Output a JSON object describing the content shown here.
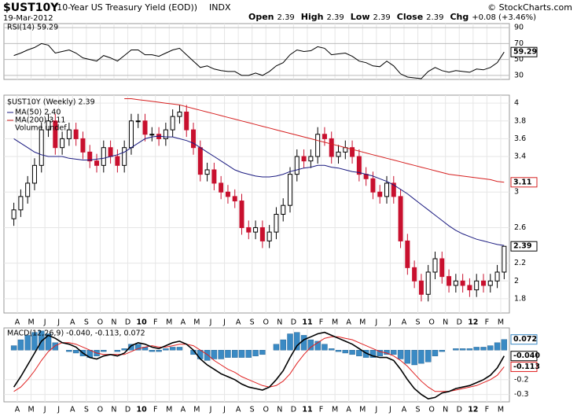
{
  "chart_data": {
    "type": "candlestick",
    "title": "$UST10Y",
    "subtitle": "(10-Year US Treasury Yield (EOD))",
    "exchange": "INDX",
    "date": "19-Mar-2012",
    "quote": [
      [
        "Open",
        "2.39"
      ],
      [
        "High",
        "2.39"
      ],
      [
        "Low",
        "2.39"
      ],
      [
        "Close",
        "2.39"
      ],
      [
        "Chg",
        "+0.08 (+3.46%)"
      ]
    ],
    "copyright": "© StockCharts.com",
    "legend": {
      "price": "$UST10Y (Weekly) 2.39",
      "ma50": "MA(50) 2.40",
      "ma200": "MA(200) 3.11",
      "volume": "Volume undef"
    },
    "tags": {
      "price": "2.39",
      "ma200": "3.11"
    },
    "months": [
      "A",
      "M",
      "J",
      "J",
      "A",
      "S",
      "O",
      "N",
      "D",
      "10",
      "F",
      "M",
      "A",
      "M",
      "J",
      "J",
      "A",
      "S",
      "O",
      "N",
      "D",
      "11",
      "F",
      "M",
      "A",
      "M",
      "J",
      "J",
      "A",
      "S",
      "O",
      "N",
      "D",
      "12",
      "F",
      "M"
    ],
    "ylim": [
      1.64,
      4.09
    ],
    "yticks": [
      1.8,
      2.0,
      2.2,
      2.6,
      3.0,
      3.4,
      3.6,
      3.8,
      4.0
    ],
    "grid": true,
    "up_color": "#ffffff",
    "down_color": "#c8102e",
    "open": [
      2.7,
      2.8,
      2.95,
      3.1,
      3.3,
      3.7,
      3.8,
      3.5,
      3.6,
      3.7,
      3.6,
      3.45,
      3.35,
      3.3,
      3.5,
      3.4,
      3.3,
      3.5,
      3.8,
      3.8,
      3.65,
      3.65,
      3.6,
      3.7,
      3.85,
      3.9,
      3.7,
      3.5,
      3.2,
      3.25,
      3.1,
      3.0,
      2.95,
      2.9,
      2.6,
      2.55,
      2.6,
      2.45,
      2.55,
      2.75,
      2.85,
      3.2,
      3.4,
      3.35,
      3.4,
      3.65,
      3.6,
      3.4,
      3.45,
      3.5,
      3.4,
      3.2,
      3.15,
      3.0,
      2.95,
      3.1,
      2.95,
      2.45,
      2.15,
      2.0,
      1.85,
      2.1,
      2.25,
      2.05,
      1.95,
      2.0,
      1.95,
      1.9,
      2.0,
      1.95,
      2.0,
      2.1
    ],
    "high": [
      2.88,
      3.03,
      3.18,
      3.38,
      3.78,
      3.88,
      3.88,
      3.68,
      3.78,
      3.78,
      3.68,
      3.53,
      3.43,
      3.58,
      3.58,
      3.48,
      3.58,
      3.88,
      3.88,
      3.88,
      3.73,
      3.73,
      3.78,
      3.93,
      3.98,
      3.98,
      3.78,
      3.58,
      3.33,
      3.33,
      3.18,
      3.08,
      3.03,
      2.98,
      2.68,
      2.68,
      2.68,
      2.63,
      2.83,
      2.93,
      3.28,
      3.48,
      3.48,
      3.48,
      3.73,
      3.73,
      3.68,
      3.53,
      3.58,
      3.58,
      3.48,
      3.28,
      3.23,
      3.08,
      3.18,
      3.18,
      3.03,
      2.53,
      2.23,
      2.08,
      2.18,
      2.33,
      2.33,
      2.13,
      2.08,
      2.08,
      2.03,
      2.08,
      2.08,
      2.08,
      2.18,
      2.39
    ],
    "low": [
      2.62,
      2.72,
      2.87,
      3.02,
      3.22,
      3.62,
      3.42,
      3.42,
      3.52,
      3.52,
      3.37,
      3.27,
      3.22,
      3.22,
      3.32,
      3.22,
      3.22,
      3.42,
      3.72,
      3.57,
      3.57,
      3.52,
      3.52,
      3.62,
      3.77,
      3.62,
      3.42,
      3.12,
      3.12,
      3.02,
      2.92,
      2.87,
      2.82,
      2.52,
      2.47,
      2.47,
      2.37,
      2.37,
      2.47,
      2.67,
      2.77,
      3.12,
      3.27,
      3.27,
      3.32,
      3.52,
      3.32,
      3.32,
      3.37,
      3.32,
      3.12,
      3.07,
      2.92,
      2.87,
      2.87,
      2.87,
      2.37,
      2.07,
      1.92,
      1.77,
      1.77,
      2.02,
      1.97,
      1.87,
      1.87,
      1.87,
      1.82,
      1.82,
      1.87,
      1.87,
      1.92,
      2.02
    ],
    "close": [
      2.8,
      2.95,
      3.1,
      3.3,
      3.7,
      3.8,
      3.5,
      3.6,
      3.7,
      3.6,
      3.45,
      3.35,
      3.3,
      3.5,
      3.4,
      3.3,
      3.5,
      3.8,
      3.8,
      3.65,
      3.65,
      3.6,
      3.7,
      3.85,
      3.9,
      3.7,
      3.5,
      3.2,
      3.25,
      3.1,
      3.0,
      2.95,
      2.9,
      2.6,
      2.55,
      2.6,
      2.45,
      2.55,
      2.75,
      2.85,
      3.2,
      3.4,
      3.35,
      3.4,
      3.65,
      3.6,
      3.4,
      3.45,
      3.5,
      3.4,
      3.2,
      3.15,
      3.0,
      2.95,
      3.1,
      2.95,
      2.45,
      2.15,
      2.0,
      1.85,
      2.1,
      2.25,
      2.05,
      1.95,
      2.0,
      1.95,
      1.9,
      2.0,
      1.95,
      2.0,
      2.1,
      2.39
    ],
    "series": [
      {
        "name": "MA(50)",
        "color": "#1a1a80",
        "values": [
          3.6,
          3.55,
          3.5,
          3.45,
          3.42,
          3.4,
          3.4,
          3.4,
          3.38,
          3.37,
          3.36,
          3.36,
          3.37,
          3.38,
          3.4,
          3.42,
          3.45,
          3.5,
          3.55,
          3.6,
          3.62,
          3.63,
          3.62,
          3.62,
          3.6,
          3.58,
          3.55,
          3.5,
          3.45,
          3.4,
          3.35,
          3.3,
          3.25,
          3.22,
          3.2,
          3.18,
          3.17,
          3.17,
          3.18,
          3.2,
          3.23,
          3.25,
          3.27,
          3.28,
          3.3,
          3.3,
          3.28,
          3.27,
          3.25,
          3.23,
          3.22,
          3.2,
          3.18,
          3.15,
          3.12,
          3.08,
          3.03,
          2.98,
          2.92,
          2.86,
          2.8,
          2.74,
          2.68,
          2.62,
          2.57,
          2.53,
          2.5,
          2.47,
          2.45,
          2.43,
          2.41,
          2.4
        ]
      },
      {
        "name": "MA(200)",
        "color": "#d62020",
        "values": [
          null,
          null,
          null,
          null,
          null,
          null,
          null,
          null,
          null,
          null,
          null,
          null,
          null,
          null,
          null,
          null,
          4.05,
          4.05,
          4.04,
          4.03,
          4.02,
          4.01,
          4.0,
          3.99,
          3.98,
          3.96,
          3.94,
          3.92,
          3.9,
          3.88,
          3.86,
          3.84,
          3.82,
          3.8,
          3.78,
          3.76,
          3.74,
          3.72,
          3.7,
          3.68,
          3.66,
          3.64,
          3.62,
          3.6,
          3.58,
          3.56,
          3.54,
          3.52,
          3.5,
          3.48,
          3.46,
          3.44,
          3.42,
          3.4,
          3.38,
          3.36,
          3.34,
          3.32,
          3.3,
          3.28,
          3.26,
          3.24,
          3.22,
          3.2,
          3.19,
          3.18,
          3.17,
          3.16,
          3.15,
          3.14,
          3.12,
          3.11
        ]
      }
    ],
    "rsi": {
      "label": "RSI(14) 59.29",
      "tag": "59.29",
      "color": "#000000",
      "ylim": [
        25,
        95
      ],
      "yticks": [
        30,
        50,
        70,
        90
      ],
      "values": [
        55,
        58,
        62,
        65,
        70,
        68,
        58,
        60,
        62,
        58,
        52,
        50,
        48,
        55,
        52,
        48,
        55,
        62,
        62,
        56,
        56,
        54,
        58,
        62,
        64,
        56,
        48,
        40,
        42,
        38,
        36,
        35,
        35,
        30,
        30,
        33,
        30,
        35,
        42,
        46,
        56,
        62,
        60,
        61,
        66,
        64,
        56,
        57,
        58,
        54,
        48,
        46,
        42,
        41,
        48,
        42,
        32,
        28,
        27,
        26,
        35,
        40,
        36,
        34,
        36,
        35,
        34,
        38,
        37,
        40,
        46,
        59.29
      ]
    },
    "macd": {
      "label": "MACD(12,26,9) -0.040, -0.113, 0.072",
      "tags": [
        "0.072",
        "-0.040",
        "-0.113"
      ],
      "ylim": [
        -0.35,
        0.15
      ],
      "yticks": [
        -0.3,
        -0.2
      ],
      "macd_color": "#000000",
      "signal_color": "#e02020",
      "hist_color": "#3a8ac4",
      "macd": [
        -0.25,
        -0.18,
        -0.1,
        -0.02,
        0.06,
        0.1,
        0.08,
        0.05,
        0.04,
        0.02,
        -0.02,
        -0.05,
        -0.06,
        -0.04,
        -0.03,
        -0.04,
        -0.02,
        0.03,
        0.05,
        0.04,
        0.02,
        0.01,
        0.03,
        0.05,
        0.06,
        0.04,
        0.0,
        -0.06,
        -0.1,
        -0.13,
        -0.16,
        -0.18,
        -0.2,
        -0.23,
        -0.25,
        -0.26,
        -0.27,
        -0.25,
        -0.2,
        -0.14,
        -0.05,
        0.03,
        0.07,
        0.09,
        0.11,
        0.12,
        0.1,
        0.08,
        0.06,
        0.04,
        0.01,
        -0.02,
        -0.04,
        -0.05,
        -0.05,
        -0.07,
        -0.13,
        -0.2,
        -0.26,
        -0.3,
        -0.33,
        -0.32,
        -0.29,
        -0.28,
        -0.26,
        -0.25,
        -0.24,
        -0.22,
        -0.2,
        -0.17,
        -0.12,
        -0.04
      ],
      "signal": [
        -0.28,
        -0.25,
        -0.2,
        -0.14,
        -0.07,
        -0.01,
        0.03,
        0.05,
        0.05,
        0.04,
        0.02,
        0.0,
        -0.02,
        -0.03,
        -0.03,
        -0.03,
        -0.03,
        -0.01,
        0.01,
        0.02,
        0.03,
        0.02,
        0.02,
        0.03,
        0.04,
        0.04,
        0.03,
        0.0,
        -0.03,
        -0.07,
        -0.1,
        -0.13,
        -0.15,
        -0.18,
        -0.2,
        -0.22,
        -0.24,
        -0.25,
        -0.24,
        -0.21,
        -0.16,
        -0.09,
        -0.03,
        0.02,
        0.05,
        0.08,
        0.09,
        0.09,
        0.08,
        0.07,
        0.05,
        0.03,
        0.01,
        -0.01,
        -0.02,
        -0.04,
        -0.07,
        -0.11,
        -0.16,
        -0.21,
        -0.25,
        -0.28,
        -0.28,
        -0.28,
        -0.27,
        -0.26,
        -0.25,
        -0.24,
        -0.22,
        -0.2,
        -0.17,
        -0.113
      ],
      "hist": [
        0.03,
        0.07,
        0.1,
        0.12,
        0.13,
        0.11,
        0.05,
        0.0,
        -0.01,
        -0.02,
        -0.04,
        -0.05,
        -0.04,
        -0.01,
        0.0,
        -0.01,
        0.01,
        0.04,
        0.04,
        0.02,
        -0.01,
        -0.01,
        0.01,
        0.02,
        0.02,
        0.0,
        -0.03,
        -0.06,
        -0.07,
        -0.06,
        -0.06,
        -0.05,
        -0.05,
        -0.05,
        -0.05,
        -0.04,
        -0.03,
        0.0,
        0.04,
        0.07,
        0.11,
        0.12,
        0.1,
        0.07,
        0.06,
        0.04,
        0.01,
        -0.01,
        -0.02,
        -0.03,
        -0.04,
        -0.05,
        -0.05,
        -0.04,
        -0.03,
        -0.03,
        -0.06,
        -0.09,
        -0.1,
        -0.09,
        -0.08,
        -0.04,
        -0.01,
        0.0,
        0.01,
        0.01,
        0.01,
        0.02,
        0.02,
        0.03,
        0.05,
        0.072
      ]
    }
  }
}
